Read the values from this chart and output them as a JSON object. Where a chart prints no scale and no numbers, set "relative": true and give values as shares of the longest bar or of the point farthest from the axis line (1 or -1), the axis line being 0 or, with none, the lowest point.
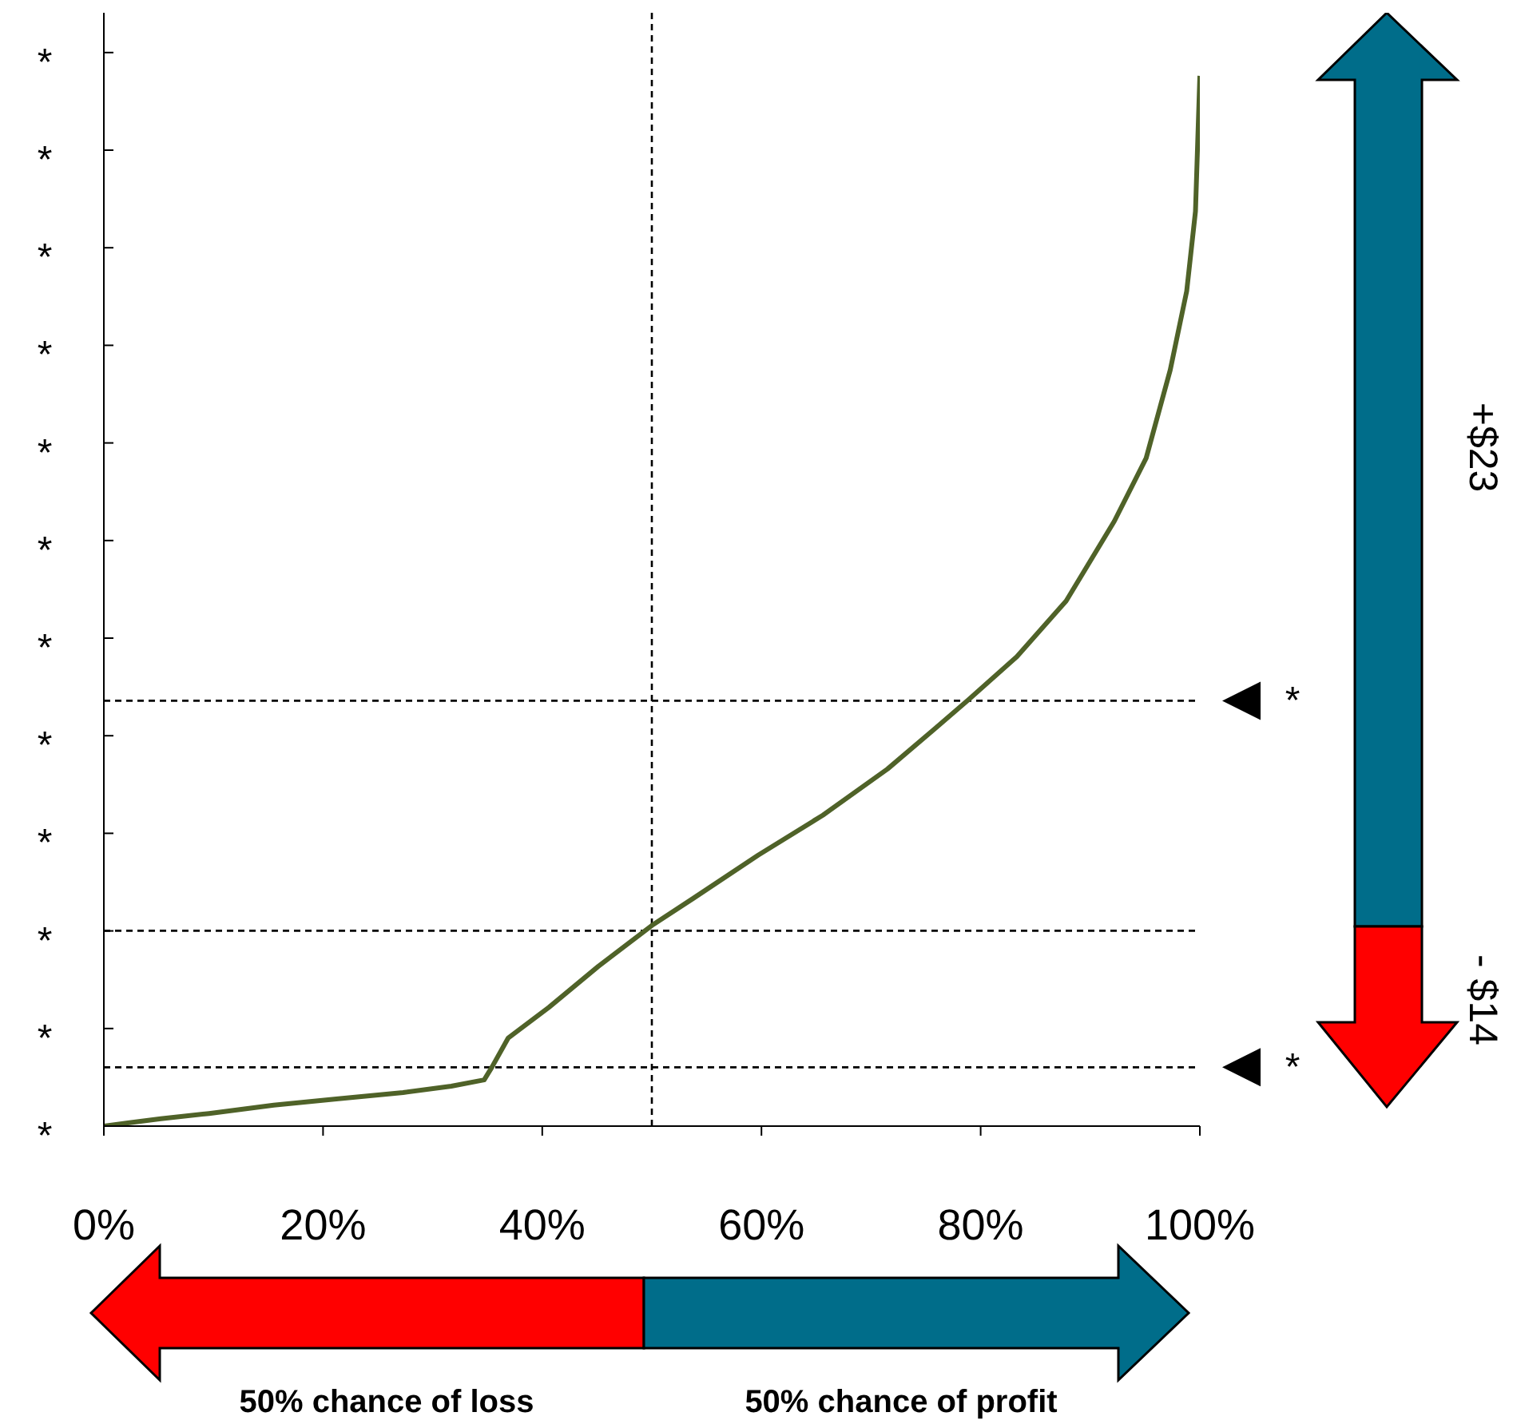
{
  "chart_data": {
    "type": "line",
    "relative": true,
    "x": [
      0,
      2.2,
      5.2,
      9.6,
      15.5,
      21.4,
      27.3,
      31.7,
      34.7,
      35.4,
      36.9,
      40.6,
      45.1,
      50,
      53.8,
      59.7,
      65.6,
      71.5,
      75.9,
      78.9,
      83.3,
      87.8,
      92.2,
      95.1,
      97.3,
      98.8,
      99.6,
      100
    ],
    "series": [
      {
        "color": "#4f6228",
        "values": [
          0,
          0.003,
          0.007,
          0.012,
          0.02,
          0.026,
          0.032,
          0.038,
          0.044,
          0.056,
          0.084,
          0.113,
          0.152,
          0.191,
          0.217,
          0.258,
          0.296,
          0.34,
          0.379,
          0.406,
          0.447,
          0.5,
          0.576,
          0.636,
          0.72,
          0.795,
          0.871,
          1
        ]
      }
    ],
    "xlim": [
      0,
      100
    ],
    "xticks": [
      {
        "value": 0,
        "label": "0%"
      },
      {
        "value": 20,
        "label": "20%"
      },
      {
        "value": 40,
        "label": "40%"
      },
      {
        "value": 60,
        "label": "60%"
      },
      {
        "value": 80,
        "label": "80%"
      },
      {
        "value": 100,
        "label": "100%"
      }
    ],
    "ref_lines": [
      {
        "axis": "x",
        "value": 50,
        "label": null,
        "color": "#000000",
        "line_style": "dashed"
      },
      {
        "axis": "y",
        "value": 0.405,
        "label": "*",
        "color": "#000000",
        "line_style": "dashed"
      },
      {
        "axis": "y",
        "value": 0.186,
        "label": null,
        "color": "#000000",
        "line_style": "dashed"
      },
      {
        "axis": "y",
        "value": 0.056,
        "label": "*",
        "color": "#000000",
        "line_style": "dashed"
      }
    ],
    "annotations": [
      "+$23",
      "- $14",
      "50% chance of loss",
      "50% chance of profit",
      "*",
      "*",
      "*",
      "*",
      "*",
      "*",
      "*",
      "*",
      "*",
      "*",
      "*",
      "*"
    ],
    "grid": false,
    "legend": false,
    "marker": "none",
    "line_style": "solid"
  }
}
